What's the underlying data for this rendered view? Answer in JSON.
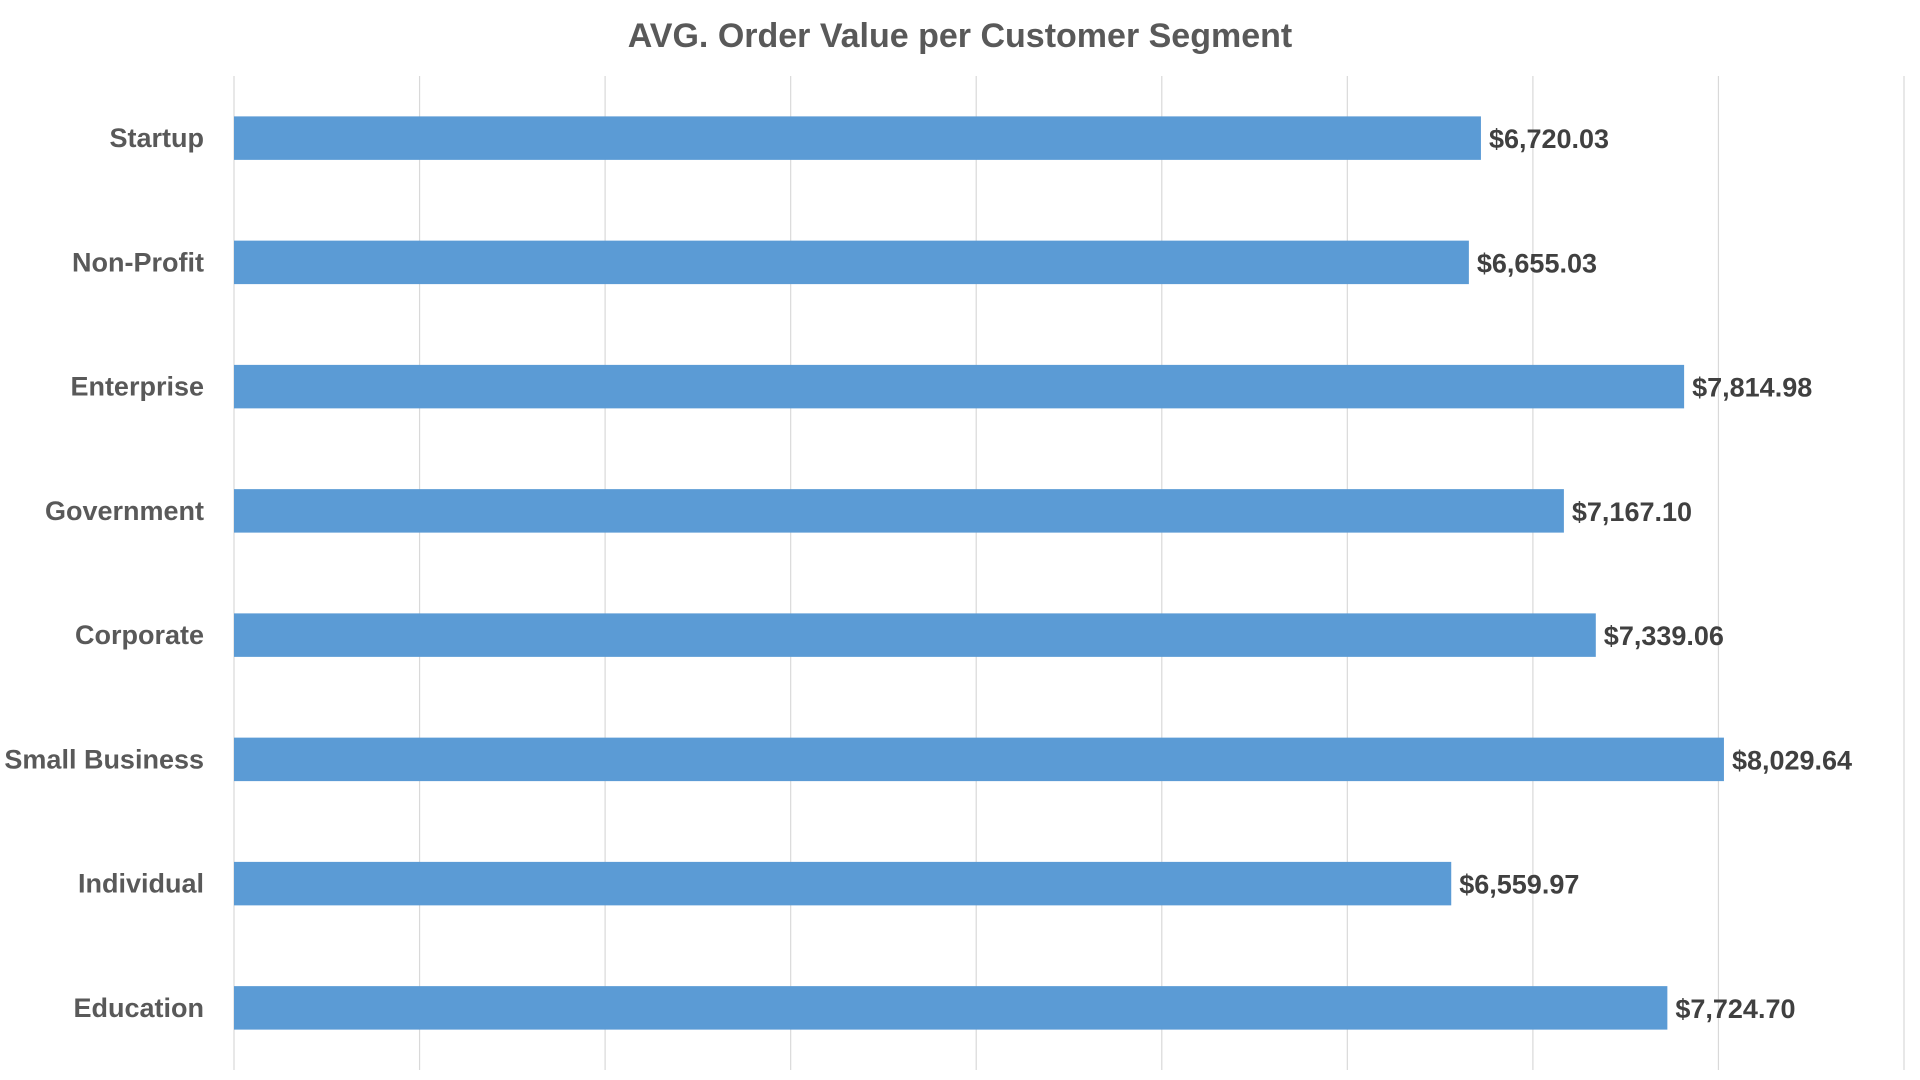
{
  "chart_data": {
    "type": "bar",
    "orientation": "horizontal",
    "title": "AVG. Order Value per Customer Segment",
    "categories": [
      "Startup",
      "Non-Profit",
      "Enterprise",
      "Government",
      "Corporate",
      "Small Business",
      "Individual",
      "Education"
    ],
    "values": [
      6720.03,
      6655.03,
      7814.98,
      7167.1,
      7339.06,
      8029.64,
      6559.97,
      7724.7
    ],
    "data_labels": [
      "$6,720.03",
      "$6,655.03",
      "$7,814.98",
      "$7,167.10",
      "$7,339.06",
      "$8,029.64",
      "$6,559.97",
      "$7,724.70"
    ],
    "xlim": [
      0,
      9000
    ],
    "x_major_step": 1000,
    "x_tick_labels_visible": false,
    "xlabel": "",
    "ylabel": "",
    "grid": "vertical",
    "legend": "none",
    "colors": {
      "bar": "#5B9BD5",
      "title": "#595959",
      "category_label": "#595959",
      "value_label": "#404040",
      "grid": "#D9D9D9"
    }
  }
}
